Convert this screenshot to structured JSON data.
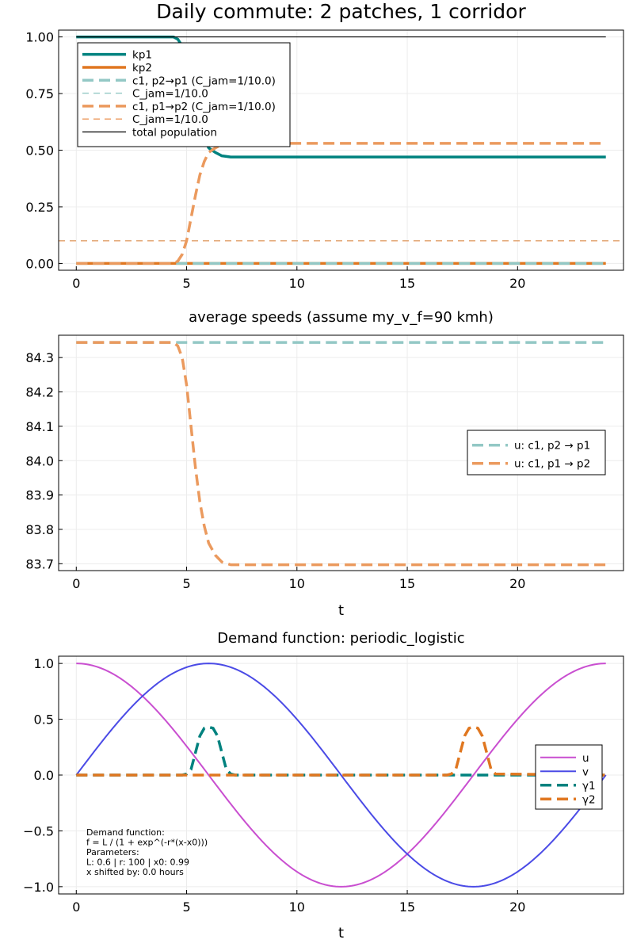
{
  "chart_data": [
    {
      "type": "line",
      "title": "Daily commute: 2 patches, 1 corridor",
      "xlabel": "",
      "ylabel": "",
      "xlim": [
        -0.8,
        24.8
      ],
      "ylim": [
        -0.03,
        1.03
      ],
      "xticks": [
        0,
        5,
        10,
        15,
        20
      ],
      "xtick_labels": [
        "0",
        "5",
        "10",
        "15",
        "20"
      ],
      "yticks": [
        0.0,
        0.25,
        0.5,
        0.75,
        1.0
      ],
      "ytick_labels": [
        "0.00",
        "0.25",
        "0.50",
        "0.75",
        "1.00"
      ],
      "grid": true,
      "legend_position": "top-left",
      "series": [
        {
          "name": "kp1",
          "color": "#00827f",
          "style": "solid",
          "width": 3.5,
          "x": [
            0,
            4.4,
            4.6,
            4.8,
            5.0,
            5.2,
            5.4,
            5.6,
            5.8,
            6.0,
            6.3,
            6.6,
            7.0,
            24
          ],
          "y": [
            1.0,
            1.0,
            0.99,
            0.96,
            0.9,
            0.8,
            0.7,
            0.61,
            0.55,
            0.51,
            0.49,
            0.475,
            0.47,
            0.47
          ]
        },
        {
          "name": "kp2",
          "color": "#e07720",
          "style": "solid",
          "width": 3.5,
          "x": [
            0,
            24
          ],
          "y": [
            0.0,
            0.0
          ]
        },
        {
          "name": "c1, p2→p1 (C_jam=1/10.0)",
          "color": "#93c8c5",
          "style": "dash",
          "width": 3.5,
          "x": [
            0,
            24
          ],
          "y": [
            0.0,
            0.0
          ]
        },
        {
          "name": "C_jam=1/10.0",
          "color": "#93c8c5",
          "style": "hline-dash",
          "width": 1.3,
          "x": [
            -0.8,
            24.8
          ],
          "y": [
            0.1,
            0.1
          ]
        },
        {
          "name": "c1, p1→p2 (C_jam=1/10.0)",
          "color": "#eb9a5e",
          "style": "dash",
          "width": 3.5,
          "x": [
            0,
            4.4,
            4.6,
            4.8,
            5.0,
            5.2,
            5.4,
            5.6,
            5.8,
            6.0,
            6.3,
            6.6,
            7.0,
            24
          ],
          "y": [
            0.0,
            0.0,
            0.01,
            0.04,
            0.1,
            0.2,
            0.3,
            0.39,
            0.45,
            0.49,
            0.51,
            0.525,
            0.53,
            0.53
          ]
        },
        {
          "name": "C_jam=1/10.0",
          "color": "#eb9a5e",
          "style": "hline-dash",
          "width": 1.3,
          "x": [
            -0.8,
            24.8
          ],
          "y": [
            0.1,
            0.1
          ]
        },
        {
          "name": "total population",
          "color": "#000000",
          "style": "solid",
          "width": 1.2,
          "x": [
            0,
            24
          ],
          "y": [
            1.0,
            1.0
          ]
        }
      ]
    },
    {
      "type": "line",
      "title": "average speeds (assume my_v_f=90 kmh)",
      "xlabel": "t",
      "ylabel": "",
      "xlim": [
        -0.8,
        24.8
      ],
      "ylim": [
        83.68,
        84.365
      ],
      "xticks": [
        0,
        5,
        10,
        15,
        20
      ],
      "xtick_labels": [
        "0",
        "5",
        "10",
        "15",
        "20"
      ],
      "yticks": [
        83.7,
        83.8,
        83.9,
        84.0,
        84.1,
        84.2,
        84.3
      ],
      "ytick_labels": [
        "83.7",
        "83.8",
        "83.9",
        "84.0",
        "84.1",
        "84.2",
        "84.3"
      ],
      "grid": true,
      "legend_position": "right",
      "series": [
        {
          "name": "u: c1, p2 → p1",
          "color": "#93c8c5",
          "style": "dash",
          "width": 3.5,
          "x": [
            0,
            24
          ],
          "y": [
            84.344,
            84.344
          ]
        },
        {
          "name": "u: c1, p1 → p2",
          "color": "#eb9a5e",
          "style": "dash",
          "width": 3.5,
          "x": [
            0,
            4.4,
            4.6,
            4.8,
            5.0,
            5.2,
            5.4,
            5.6,
            5.8,
            6.0,
            6.3,
            6.6,
            7.0,
            24
          ],
          "y": [
            84.344,
            84.344,
            84.334,
            84.3,
            84.22,
            84.1,
            83.98,
            83.88,
            83.81,
            83.76,
            83.725,
            83.705,
            83.697,
            83.697
          ]
        }
      ]
    },
    {
      "type": "line",
      "title": "Demand function: periodic_logistic",
      "xlabel": "t",
      "ylabel": "",
      "xlim": [
        -0.8,
        24.8
      ],
      "ylim": [
        -1.065,
        1.065
      ],
      "xticks": [
        0,
        5,
        10,
        15,
        20
      ],
      "xtick_labels": [
        "0",
        "5",
        "10",
        "15",
        "20"
      ],
      "yticks": [
        -1.0,
        -0.5,
        0.0,
        0.5,
        1.0
      ],
      "ytick_labels": [
        "−1.0",
        "−0.5",
        "0.0",
        "0.5",
        "1.0"
      ],
      "grid": true,
      "legend_position": "right",
      "series": [
        {
          "name": "u",
          "color": "#c94fd0",
          "style": "solid",
          "width": 2,
          "function": "cos",
          "x_range": [
            0,
            24
          ],
          "period": 24
        },
        {
          "name": "v",
          "color": "#4b4be6",
          "style": "solid",
          "width": 2,
          "function": "sin",
          "x_range": [
            0,
            24
          ],
          "period": 24
        },
        {
          "name": "γ1",
          "color": "#00827f",
          "style": "dash",
          "width": 3.5,
          "x": [
            0,
            4.8,
            5.0,
            5.2,
            5.4,
            5.6,
            5.8,
            6.0,
            6.2,
            6.4,
            6.6,
            6.8,
            7.0,
            7.2,
            24
          ],
          "y": [
            0,
            0,
            0.01,
            0.05,
            0.2,
            0.35,
            0.42,
            0.43,
            0.42,
            0.35,
            0.2,
            0.05,
            0.01,
            0,
            0
          ]
        },
        {
          "name": "γ2",
          "color": "#e07720",
          "style": "dash",
          "width": 3.5,
          "x": [
            0,
            16.8,
            17.0,
            17.2,
            17.4,
            17.6,
            17.8,
            18.0,
            18.2,
            18.4,
            18.6,
            18.8,
            19.0,
            24
          ],
          "y": [
            0,
            0,
            0.01,
            0.05,
            0.2,
            0.35,
            0.42,
            0.43,
            0.42,
            0.35,
            0.2,
            0.05,
            0.01,
            0
          ]
        }
      ],
      "annotation": [
        "Demand function:",
        "f = L / (1 + exp^(-r*(x-x0)))",
        "Parameters:",
        "L: 0.6 | r: 100 | x0: 0.99",
        "x shifted by: 0.0 hours"
      ]
    }
  ]
}
